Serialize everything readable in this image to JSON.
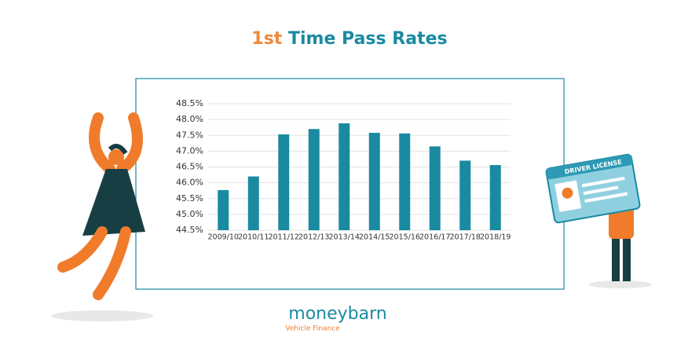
{
  "chart_data": {
    "type": "bar",
    "title": [
      "1st",
      "Time Pass Rates"
    ],
    "categories": [
      "2009/10",
      "2010/11",
      "2011/12",
      "2012/13",
      "2013/14",
      "2014/15",
      "2015/16",
      "2016/17",
      "2017/18",
      "2018/19"
    ],
    "values": [
      45.77,
      46.2,
      47.53,
      47.7,
      47.88,
      47.58,
      47.56,
      47.15,
      46.7,
      46.56
    ],
    "color": "#1a8aa1",
    "ylim": [
      44.5,
      48.5
    ],
    "yticks": [
      {
        "value": 44.5,
        "label": "44.5%"
      },
      {
        "value": 45,
        "label": "45.0%"
      },
      {
        "value": 45.5,
        "label": "45.5%"
      },
      {
        "value": 46,
        "label": "46.0%"
      },
      {
        "value": 46.5,
        "label": "46.5%"
      },
      {
        "value": 47,
        "label": "47.0%"
      },
      {
        "value": 47.5,
        "label": "47.5%"
      },
      {
        "value": 48,
        "label": "48.0%"
      },
      {
        "value": 48.5,
        "label": "48.5%"
      }
    ],
    "grid": true
  },
  "illustration": {
    "card_label": "DRIVER LICENSE"
  },
  "brand": {
    "name": "moneybarn",
    "tagline": "Vehicle Finance"
  }
}
